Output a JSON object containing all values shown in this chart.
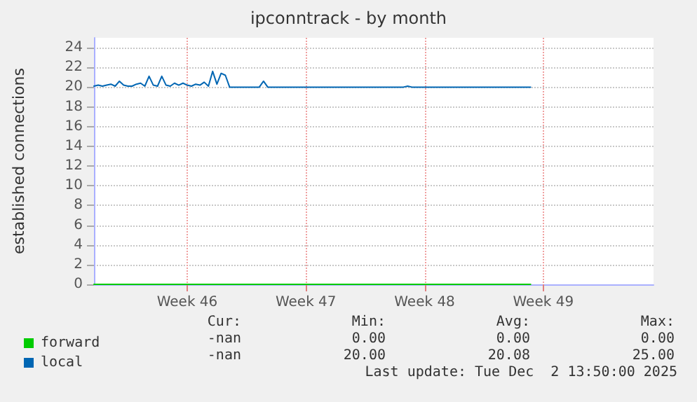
{
  "chart_data": {
    "type": "line",
    "title": "ipconntrack - by month",
    "ylabel": "established connections",
    "categories": [
      null,
      null,
      null,
      null,
      null,
      null,
      null,
      null,
      null,
      null,
      null,
      null,
      null,
      null,
      null,
      null,
      null,
      null,
      null,
      null,
      null,
      null,
      "Week 46",
      null,
      null,
      null,
      null,
      null,
      null,
      null,
      null,
      null,
      null,
      null,
      null,
      null,
      null,
      null,
      null,
      null,
      null,
      null,
      null,
      null,
      null,
      null,
      null,
      null,
      null,
      null,
      "Week 47",
      null,
      null,
      null,
      null,
      null,
      null,
      null,
      null,
      null,
      null,
      null,
      null,
      null,
      null,
      null,
      null,
      null,
      null,
      null,
      null,
      null,
      null,
      null,
      null,
      null,
      null,
      null,
      "Week 48",
      null,
      null,
      null,
      null,
      null,
      null,
      null,
      null,
      null,
      null,
      null,
      null,
      null,
      null,
      null,
      null,
      null,
      null,
      null,
      null,
      null,
      null,
      null,
      null,
      null,
      null,
      null,
      "Week 49",
      null,
      null,
      null,
      null,
      null,
      null,
      null,
      null,
      null,
      null,
      null,
      null,
      null,
      null,
      null,
      null,
      null,
      null,
      null,
      null,
      null,
      null,
      null,
      null,
      null,
      null
    ],
    "ylim": [
      0,
      25
    ],
    "yticks": [
      0,
      2,
      4,
      6,
      8,
      10,
      12,
      14,
      16,
      18,
      20,
      22,
      24
    ],
    "grid": true,
    "legend": "bottom left",
    "marker": "none",
    "line_style": "solid",
    "series": [
      {
        "name": "forward",
        "color": "#00cc00",
        "values": [
          0,
          0,
          0,
          0,
          0,
          0,
          0,
          0,
          0,
          0,
          0,
          0,
          0,
          0,
          0,
          0,
          0,
          0,
          0,
          0,
          0,
          0,
          0,
          0,
          0,
          0,
          0,
          0,
          0,
          0,
          0,
          0,
          0,
          0,
          0,
          0,
          0,
          0,
          0,
          0,
          0,
          0,
          0,
          0,
          0,
          0,
          0,
          0,
          0,
          0,
          0,
          0,
          0,
          0,
          0,
          0,
          0,
          0,
          0,
          0,
          0,
          0,
          0,
          0,
          0,
          0,
          0,
          0,
          0,
          0,
          0,
          0,
          0,
          0,
          0,
          0,
          0,
          0,
          0,
          0,
          0,
          0,
          0,
          0,
          0,
          0,
          0,
          0,
          0,
          0,
          0,
          0,
          0,
          0,
          0,
          0,
          0,
          0,
          0,
          0,
          0,
          0,
          0,
          0,
          null,
          null,
          null,
          null,
          null,
          null,
          null,
          null,
          null,
          null,
          null,
          null,
          null,
          null,
          null,
          null,
          null,
          null,
          null,
          null,
          null,
          null,
          null,
          null,
          null,
          null,
          null,
          null,
          null
        ]
      },
      {
        "name": "local",
        "color": "#0066b3",
        "values": [
          20.1,
          20.2,
          20.1,
          20.2,
          20.3,
          20.1,
          20.6,
          20.2,
          20.1,
          20.1,
          20.3,
          20.4,
          20.1,
          21.1,
          20.2,
          20.1,
          21.1,
          20.2,
          20.1,
          20.4,
          20.2,
          20.4,
          20.2,
          20.1,
          20.3,
          20.2,
          20.5,
          20.1,
          21.6,
          20.3,
          21.4,
          21.2,
          20,
          20,
          20,
          20,
          20,
          20,
          20,
          20,
          20.6,
          20,
          20,
          20,
          20,
          20,
          20,
          20,
          20,
          20,
          20,
          20,
          20,
          20,
          20,
          20,
          20,
          20,
          20,
          20,
          20,
          20,
          20,
          20,
          20,
          20,
          20,
          20,
          20,
          20,
          20,
          20,
          20,
          20,
          20.1,
          20,
          20,
          20,
          20,
          20,
          20,
          20,
          20,
          20,
          20,
          20,
          20,
          20,
          20,
          20,
          20,
          20,
          20,
          20,
          20,
          20,
          20,
          20,
          20,
          20,
          20,
          20,
          20,
          20,
          null,
          null,
          null,
          null,
          null,
          null,
          null,
          null,
          null,
          null,
          null,
          null,
          null,
          null,
          null,
          null,
          null,
          null,
          null,
          null,
          null,
          null,
          null,
          null,
          null,
          null,
          null,
          null,
          null
        ]
      }
    ],
    "annotations": [
      "Cur:",
      "Min:",
      "Avg:",
      "Max:",
      "-nan",
      "0.00",
      "0.00",
      "0.00",
      "-nan",
      "20.00",
      "20.08",
      "25.00",
      "Last update: Tue Dec  2 13:50:00 2025"
    ]
  }
}
